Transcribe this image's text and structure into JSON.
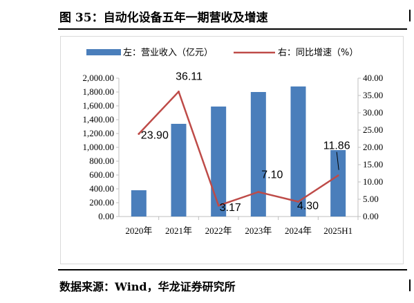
{
  "figure": {
    "title": "图 35：自动化设备五年一期营收及增速",
    "source": "数据来源：Wind，华龙证券研究所"
  },
  "colors": {
    "bar": "#4a7ebb",
    "line": "#be4b48",
    "axis": "#bfbfbf"
  },
  "chart_data": {
    "type": "bar+line",
    "categories": [
      "2020年",
      "2021年",
      "2022年",
      "2023年",
      "2024年",
      "2025H1"
    ],
    "series": [
      {
        "name": "左：营业收入（亿元）",
        "type": "bar",
        "axis": "left",
        "values": [
          380,
          1340,
          1590,
          1800,
          1880,
          960
        ]
      },
      {
        "name": "右：同比增速（%）",
        "type": "line",
        "axis": "right",
        "values": [
          23.9,
          36.11,
          3.17,
          7.1,
          4.3,
          11.86
        ],
        "labels": [
          "23.90",
          "36.11",
          "3.17",
          "7.10",
          "4.30",
          "11.86"
        ]
      }
    ],
    "left_axis": {
      "ylim": [
        0,
        2000
      ],
      "ticks": [
        "0.00",
        "200.00",
        "400.00",
        "600.00",
        "800.00",
        "1,000.00",
        "1,200.00",
        "1,400.00",
        "1,600.00",
        "1,800.00",
        "2,000.00"
      ]
    },
    "right_axis": {
      "ylim": [
        0,
        40
      ],
      "ticks": [
        "0.00",
        "5.00",
        "10.00",
        "15.00",
        "20.00",
        "25.00",
        "30.00",
        "35.00",
        "40.00"
      ]
    },
    "grid": false,
    "legend": "top"
  }
}
